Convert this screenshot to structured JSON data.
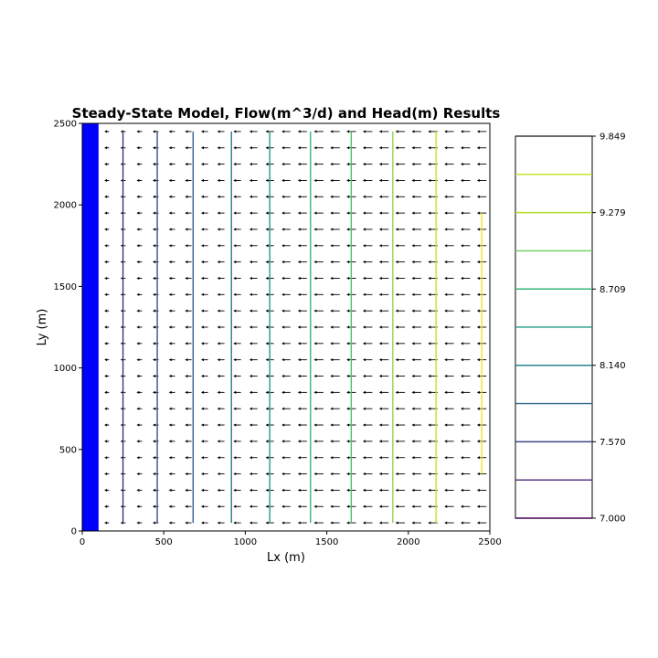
{
  "chart_data": [
    {
      "type": "contour",
      "title": "Steady-State Model, Flow(m^3/d) and Head(m) Results",
      "xlabel": "Lx (m)",
      "ylabel": "Ly (m)",
      "xlim": [
        0,
        2500
      ],
      "ylim": [
        0,
        2500
      ],
      "x_ticks": [
        "0",
        "500",
        "1000",
        "1500",
        "2000",
        "2500"
      ],
      "y_ticks": [
        "0",
        "500",
        "1000",
        "1500",
        "2000",
        "2500"
      ],
      "grid": false,
      "constant_head_strip": {
        "x_range": [
          0,
          100
        ],
        "color": "#0000ff"
      },
      "contours": [
        {
          "x": 250,
          "y_range": [
            50,
            2450
          ],
          "color": "#46327e"
        },
        {
          "x": 460,
          "y_range": [
            50,
            2450
          ],
          "color": "#3b528b"
        },
        {
          "x": 680,
          "y_range": [
            50,
            2450
          ],
          "color": "#365c8d"
        },
        {
          "x": 915,
          "y_range": [
            50,
            2450
          ],
          "color": "#277f8e"
        },
        {
          "x": 1150,
          "y_range": [
            50,
            2450
          ],
          "color": "#1f9e89"
        },
        {
          "x": 1400,
          "y_range": [
            50,
            2450
          ],
          "color": "#35b779"
        },
        {
          "x": 1650,
          "y_range": [
            50,
            2450
          ],
          "color": "#4ac16d"
        },
        {
          "x": 1905,
          "y_range": [
            50,
            2450
          ],
          "color": "#8fd744"
        },
        {
          "x": 2170,
          "y_range": [
            50,
            2450
          ],
          "color": "#c8e020"
        },
        {
          "x": 2450,
          "y_range": [
            350,
            1950
          ],
          "color": "#f1e51d"
        }
      ],
      "quiver": {
        "direction": "negative-x",
        "x_start": 150,
        "x_step": 100,
        "y_start": 50,
        "y_step": 100,
        "color": "#000000"
      }
    },
    {
      "type": "colorbar",
      "min": 7.0,
      "max": 9.849,
      "tick_labels": [
        "9.849",
        "9.279",
        "8.709",
        "8.140",
        "7.570",
        "7.000"
      ],
      "levels": [
        {
          "value": 7.0,
          "color": "#440154"
        },
        {
          "value": 7.285,
          "color": "#482878"
        },
        {
          "value": 7.57,
          "color": "#3e4989"
        },
        {
          "value": 7.855,
          "color": "#31688e"
        },
        {
          "value": 8.14,
          "color": "#26828e"
        },
        {
          "value": 8.425,
          "color": "#1f9e89"
        },
        {
          "value": 8.709,
          "color": "#35b779"
        },
        {
          "value": 8.994,
          "color": "#6ece58"
        },
        {
          "value": 9.279,
          "color": "#b5de2b"
        },
        {
          "value": 9.564,
          "color": "#c8e020"
        },
        {
          "value": 9.849,
          "color": "#3b3b3b"
        }
      ]
    }
  ]
}
